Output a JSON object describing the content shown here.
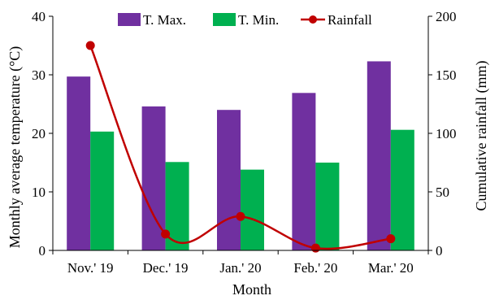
{
  "chart_data": {
    "type": "bar",
    "categories": [
      "Nov.' 19",
      "Dec.' 19",
      "Jan.' 20",
      "Feb.' 20",
      "Mar.' 20"
    ],
    "series": [
      {
        "name": "T. Max.",
        "type": "bar",
        "axis": "left",
        "color": "#7030a0",
        "values": [
          29.7,
          24.6,
          24.0,
          26.9,
          32.3
        ]
      },
      {
        "name": "T. Min.",
        "type": "bar",
        "axis": "left",
        "color": "#00b050",
        "values": [
          20.3,
          15.1,
          13.8,
          15.0,
          20.6
        ]
      },
      {
        "name": "Rainfall",
        "type": "line",
        "axis": "right",
        "color": "#c00000",
        "values": [
          175,
          14,
          29,
          2,
          10
        ]
      }
    ],
    "xlabel": "Month",
    "ylabel": "Monthly average temperature (°C)",
    "y2label": "Cumulative rainfall (mm)",
    "ylim": [
      0,
      40
    ],
    "y2lim": [
      0,
      200
    ],
    "yticks": [
      "0",
      "10",
      "20",
      "30",
      "40"
    ],
    "y2ticks": [
      "0",
      "50",
      "100",
      "150",
      "200"
    ],
    "legend_position": "top",
    "grid": false
  }
}
